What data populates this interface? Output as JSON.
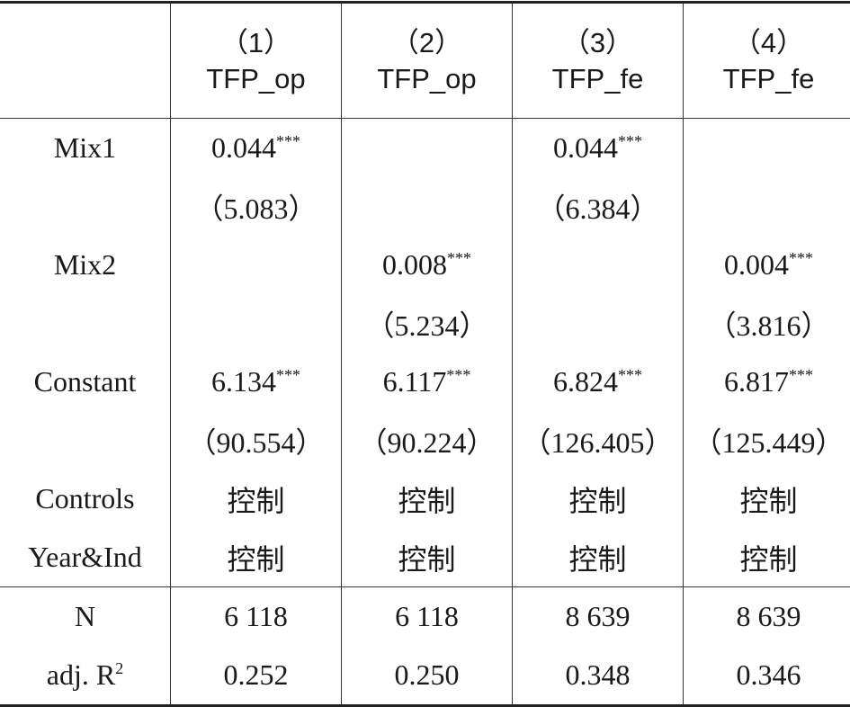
{
  "header": {
    "columns": [
      {
        "number": "（1）",
        "name": "TFP_op"
      },
      {
        "number": "（2）",
        "name": "TFP_op"
      },
      {
        "number": "（3）",
        "name": "TFP_fe"
      },
      {
        "number": "（4）",
        "name": "TFP_fe"
      }
    ]
  },
  "rows": [
    {
      "label": "Mix1",
      "cells": [
        {
          "value": "0.044",
          "stars": "***"
        },
        null,
        {
          "value": "0.044",
          "stars": "***"
        },
        null
      ]
    },
    {
      "label": null,
      "cells": [
        "（5.083）",
        null,
        "（6.384）",
        null
      ]
    },
    {
      "label": "Mix2",
      "cells": [
        null,
        {
          "value": "0.008",
          "stars": "***"
        },
        null,
        {
          "value": "0.004",
          "stars": "***"
        }
      ]
    },
    {
      "label": null,
      "cells": [
        null,
        "（5.234）",
        null,
        "（3.816）"
      ]
    },
    {
      "label": "Constant",
      "cells": [
        {
          "value": "6.134",
          "stars": "***"
        },
        {
          "value": "6.117",
          "stars": "***"
        },
        {
          "value": "6.824",
          "stars": "***"
        },
        {
          "value": "6.817",
          "stars": "***"
        }
      ]
    },
    {
      "label": null,
      "cells": [
        "（90.554）",
        "（90.224）",
        "（126.405）",
        "（125.449）"
      ]
    },
    {
      "label": "Controls",
      "cells": [
        "控制",
        "控制",
        "控制",
        "控制"
      ]
    },
    {
      "label": "Year&Ind",
      "cells": [
        "控制",
        "控制",
        "控制",
        "控制"
      ]
    }
  ],
  "footer": [
    {
      "label": "N",
      "cells": [
        "6 118",
        "6 118",
        "8 639",
        "8 639"
      ]
    },
    {
      "label": {
        "text": "adj. R",
        "sup": "2"
      },
      "cells": [
        "0.252",
        "0.250",
        "0.348",
        "0.346"
      ]
    }
  ]
}
